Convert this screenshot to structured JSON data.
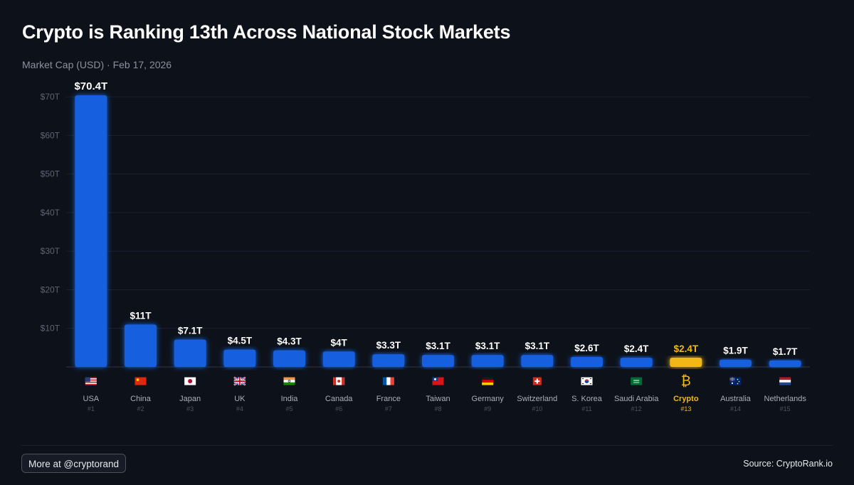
{
  "header": {
    "title": "Crypto is Ranking 13th Across National Stock Markets",
    "subtitle": "Market Cap (USD) · Feb 17, 2026"
  },
  "footer": {
    "more_label": "More at @cryptorand",
    "source": "Source: CryptoRank.io"
  },
  "colors": {
    "bar": "#1260df",
    "highlight": "#f2b817",
    "grid": "#1b2130",
    "axis": "#2e3544",
    "tick_text": "#5d6573",
    "label_text": "#aab0bb",
    "rank_text": "#4d5461"
  },
  "chart_data": {
    "type": "bar",
    "title": "Crypto is Ranking 13th Across National Stock Markets",
    "ylabel": "Market Cap (USD)",
    "ylim": [
      0,
      70.4
    ],
    "yticks": [
      10,
      20,
      30,
      40,
      50,
      60,
      70
    ],
    "ytick_labels": [
      "$10T",
      "$20T",
      "$30T",
      "$40T",
      "$50T",
      "$60T",
      "$70T"
    ],
    "grid": true,
    "highlight_category": "Crypto",
    "categories": [
      "USA",
      "China",
      "Japan",
      "UK",
      "India",
      "Canada",
      "France",
      "Taiwan",
      "Germany",
      "Switzerland",
      "S. Korea",
      "Saudi Arabia",
      "Crypto",
      "Australia",
      "Netherlands"
    ],
    "values": [
      70.4,
      11,
      7.1,
      4.5,
      4.3,
      4,
      3.3,
      3.1,
      3.1,
      3.1,
      2.6,
      2.4,
      2.4,
      1.9,
      1.7
    ],
    "value_labels": [
      "$70.4T",
      "$11T",
      "$7.1T",
      "$4.5T",
      "$4.3T",
      "$4T",
      "$3.3T",
      "$3.1T",
      "$3.1T",
      "$3.1T",
      "$2.6T",
      "$2.4T",
      "$2.4T",
      "$1.9T",
      "$1.7T"
    ],
    "ranks": [
      "#1",
      "#2",
      "#3",
      "#4",
      "#5",
      "#6",
      "#7",
      "#8",
      "#9",
      "#10",
      "#11",
      "#12",
      "#13",
      "#14",
      "#15"
    ],
    "icons": [
      "flag-usa",
      "flag-china",
      "flag-japan",
      "flag-uk",
      "flag-india",
      "flag-canada",
      "flag-france",
      "flag-taiwan",
      "flag-germany",
      "flag-switzerland",
      "flag-south-korea",
      "flag-saudi-arabia",
      "bitcoin-symbol",
      "flag-australia",
      "flag-netherlands"
    ],
    "crypto_symbol": "₿"
  }
}
